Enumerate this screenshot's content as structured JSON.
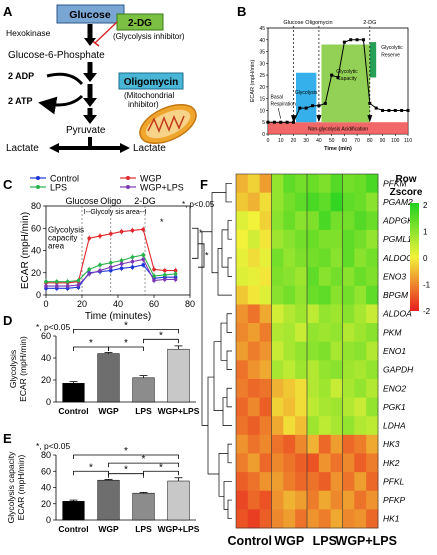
{
  "panels": {
    "A": "A",
    "B": "B",
    "C": "C",
    "D": "D",
    "E": "E",
    "F": "F"
  },
  "panel_a": {
    "glucose": "Glucose",
    "hexokinase": "Hexokinase",
    "two_dg": "2-DG",
    "two_dg_note": "(Glycolysis inhibitor)",
    "g6p": "Glucose-6-Phosphate",
    "two_adp": "2 ADP",
    "two_atp": "2 ATP",
    "oligomycin": "Oligomycin",
    "oligo_note_1": "(Mitochondrial",
    "oligo_note_2": "inhibitor)",
    "pyruvate": "Pyruvate",
    "lactate_left": "Lactate",
    "lactate_right": "Lactate"
  },
  "panel_b": {
    "chart_data": {
      "type": "line",
      "x": [
        0,
        5,
        10,
        15,
        20,
        25,
        30,
        35,
        40,
        45,
        50,
        55,
        60,
        65,
        70,
        75,
        80,
        85,
        90,
        95,
        100,
        105,
        110
      ],
      "y": [
        5,
        5,
        5,
        5,
        5,
        11,
        11,
        12,
        12,
        13,
        25,
        24,
        39,
        40,
        40,
        40,
        13,
        11,
        10,
        10,
        10,
        10,
        10
      ],
      "xlabel": "Time (min)",
      "ylabel": "ECAR (mpH/min)",
      "xlim": [
        0,
        110
      ],
      "ylim": [
        0,
        45
      ],
      "xticks": [
        0,
        10,
        20,
        30,
        40,
        50,
        60,
        70,
        80,
        90,
        100,
        110
      ],
      "yticks": [
        0,
        5,
        10,
        15,
        20,
        25,
        30,
        35,
        40,
        45
      ],
      "injections": [
        "Glucose",
        "Oligomycin",
        "2-DG"
      ],
      "region_labels": {
        "basal": [
          "Basal",
          "Respiration"
        ],
        "glycolysis": "Glycolysis",
        "capacity": [
          "Glycolytic",
          "Capacity"
        ],
        "reserve": [
          "Glycolytic",
          "Reserve"
        ],
        "non_glycolysis": "Non-glycolysis Acidification"
      },
      "colors": {
        "glycolysis": "#1fa7e8",
        "capacity": "#8ccf4d",
        "reserve": "#1a9a4e",
        "non_glycolysis": "#f04c4c"
      }
    }
  },
  "panel_c": {
    "chart_data": {
      "type": "line",
      "x": [
        0,
        6,
        12,
        18,
        24,
        30,
        36,
        42,
        48,
        54,
        60,
        66,
        72
      ],
      "series": [
        {
          "name": "Control",
          "color": "#1b35d6",
          "values": [
            6,
            6,
            6,
            7,
            20,
            21,
            22,
            24,
            25,
            27,
            15,
            16,
            16
          ]
        },
        {
          "name": "WGP",
          "color": "#e0282e",
          "values": [
            11,
            11,
            11,
            12,
            51,
            53,
            55,
            57,
            58,
            59,
            23,
            22,
            22
          ]
        },
        {
          "name": "LPS",
          "color": "#28b24b",
          "values": [
            12,
            12,
            12,
            13,
            23,
            27,
            29,
            31,
            34,
            36,
            17,
            18,
            19
          ]
        },
        {
          "name": "WGP+LPS",
          "color": "#7b39b5",
          "values": [
            8,
            8,
            8,
            9,
            19,
            22,
            25,
            28,
            30,
            32,
            13,
            14,
            14
          ]
        }
      ],
      "xlabel": "Time (minutes)",
      "ylabel": "ECAR (mpH/min)",
      "xlim": [
        0,
        80
      ],
      "ylim": [
        0,
        80
      ],
      "xticks": [
        0,
        20,
        40,
        60,
        80
      ],
      "yticks": [
        0,
        20,
        40,
        60,
        80
      ],
      "injections": [
        "Glucose",
        "Oligo",
        "2-DG"
      ],
      "annotations": {
        "glycolysis_area": "I--Glycoly sis area--I",
        "capacity_area": [
          "Glycolysis",
          "capacity",
          "area"
        ],
        "pval": "*, p<0.05",
        "star": "*"
      }
    }
  },
  "panel_d": {
    "chart_data": {
      "type": "bar",
      "categories": [
        "Control",
        "WGP",
        "LPS",
        "WGP+LPS"
      ],
      "values": [
        17,
        44,
        22,
        48
      ],
      "errors": [
        1.5,
        1,
        2,
        3
      ],
      "colors": [
        "#000000",
        "#6e6e6e",
        "#8c8c8c",
        "#c8c8c8"
      ],
      "ylabel": [
        "Glycolysis",
        "ECAR (mpH/min)"
      ],
      "ylim": [
        0,
        60
      ],
      "yticks": [
        0,
        20,
        40,
        60
      ],
      "pval": "*, p<0.05",
      "star": "*"
    }
  },
  "panel_e": {
    "chart_data": {
      "type": "bar",
      "categories": [
        "Control",
        "WGP",
        "LPS",
        "WGP+LPS"
      ],
      "values": [
        23,
        49,
        33,
        48
      ],
      "errors": [
        1.5,
        1,
        1,
        4
      ],
      "colors": [
        "#000000",
        "#6e6e6e",
        "#8c8c8c",
        "#c8c8c8"
      ],
      "ylabel": [
        "Glycolysis capacity",
        "ECAR (mpH/min)"
      ],
      "ylim": [
        0,
        80
      ],
      "yticks": [
        0,
        20,
        40,
        60,
        80
      ],
      "pval": "*, p<0.05",
      "star": "*"
    }
  },
  "panel_f": {
    "chart_data": {
      "type": "heatmap",
      "genes": [
        "PFKM",
        "PGAM2",
        "ADPGK",
        "PGML1",
        "ALDOC",
        "ENO3",
        "BPGM",
        "ALDOA",
        "PKM",
        "ENO1",
        "GAPDH",
        "ENO2",
        "PGK1",
        "LDHA",
        "HK3",
        "HK2",
        "PFKL",
        "PFKP",
        "HK1"
      ],
      "groups": [
        "Control",
        "WGP",
        "LPS",
        "WGP+LPS"
      ],
      "legend_title": [
        "Row",
        "Zscore"
      ],
      "legend_ticks": [
        "2",
        "1",
        "0",
        "-1",
        "-2"
      ],
      "values": [
        [
          -0.6,
          -0.3,
          -0.8,
          0.9,
          1.4,
          1.2,
          1.3,
          1.1,
          1.5,
          1.2,
          1.3,
          1.6
        ],
        [
          -0.4,
          -0.6,
          -0.2,
          0.9,
          1.2,
          1.4,
          1.6,
          1.4,
          1.8,
          1.4,
          1.3,
          1.0
        ],
        [
          0.2,
          0.0,
          -0.3,
          1.0,
          1.3,
          1.0,
          1.1,
          1.6,
          1.2,
          1.2,
          1.5,
          1.3
        ],
        [
          0.0,
          0.3,
          -0.1,
          0.8,
          1.0,
          1.2,
          1.3,
          1.1,
          1.1,
          1.4,
          1.2,
          0.9
        ],
        [
          0.1,
          -0.2,
          0.1,
          1.2,
          0.9,
          1.1,
          1.2,
          1.3,
          1.0,
          1.4,
          1.0,
          1.2
        ],
        [
          0.2,
          0.1,
          -0.1,
          1.1,
          1.0,
          0.8,
          1.4,
          1.0,
          1.2,
          1.0,
          1.3,
          1.1
        ],
        [
          -0.4,
          -0.1,
          0.2,
          1.0,
          1.2,
          0.9,
          1.3,
          1.4,
          1.0,
          1.2,
          0.9,
          1.4
        ],
        [
          -0.9,
          -1.2,
          -0.7,
          0.3,
          0.6,
          0.8,
          0.5,
          0.9,
          0.8,
          1.0,
          0.7,
          0.4
        ],
        [
          -1.0,
          -0.8,
          -1.1,
          0.6,
          0.7,
          0.4,
          0.9,
          0.8,
          0.9,
          0.6,
          0.8,
          1.0
        ],
        [
          -0.8,
          -1.1,
          -0.9,
          0.4,
          0.7,
          0.9,
          1.0,
          1.1,
          0.7,
          0.9,
          1.0,
          0.6
        ],
        [
          -1.2,
          -0.9,
          -0.7,
          0.7,
          0.5,
          0.8,
          0.6,
          0.9,
          1.0,
          0.8,
          0.7,
          0.9
        ],
        [
          -1.1,
          -1.3,
          -1.2,
          -0.6,
          -0.4,
          -0.2,
          0.6,
          0.8,
          0.4,
          0.7,
          0.9,
          0.6
        ],
        [
          -1.3,
          -1.0,
          -1.4,
          -0.3,
          -0.5,
          -0.2,
          0.5,
          0.7,
          0.8,
          0.6,
          0.4,
          0.9
        ],
        [
          -1.2,
          -1.4,
          -1.1,
          -0.7,
          -0.2,
          -0.5,
          0.8,
          0.5,
          0.7,
          0.9,
          0.6,
          0.5
        ],
        [
          -0.9,
          -1.2,
          -1.0,
          -1.2,
          -1.4,
          -1.0,
          -0.6,
          -1.3,
          -0.8,
          -1.3,
          -1.1,
          -0.7
        ],
        [
          -1.1,
          -0.8,
          -1.3,
          -1.0,
          -1.2,
          -1.4,
          -1.5,
          -0.9,
          -1.2,
          -1.0,
          -1.4,
          -1.1
        ],
        [
          -1.4,
          -1.2,
          -0.9,
          -0.8,
          -1.1,
          -1.3,
          -1.2,
          -1.4,
          -0.9,
          -1.2,
          -0.8,
          -1.3
        ],
        [
          -1.6,
          -1.3,
          -1.5,
          -0.9,
          -0.6,
          -0.8,
          -1.1,
          -0.7,
          -1.0,
          -0.8,
          -1.2,
          -0.9
        ],
        [
          -1.5,
          -1.7,
          -1.4,
          -1.0,
          -0.8,
          -1.2,
          -0.9,
          -1.1,
          -0.7,
          -1.0,
          -0.9,
          -1.3
        ]
      ]
    }
  }
}
